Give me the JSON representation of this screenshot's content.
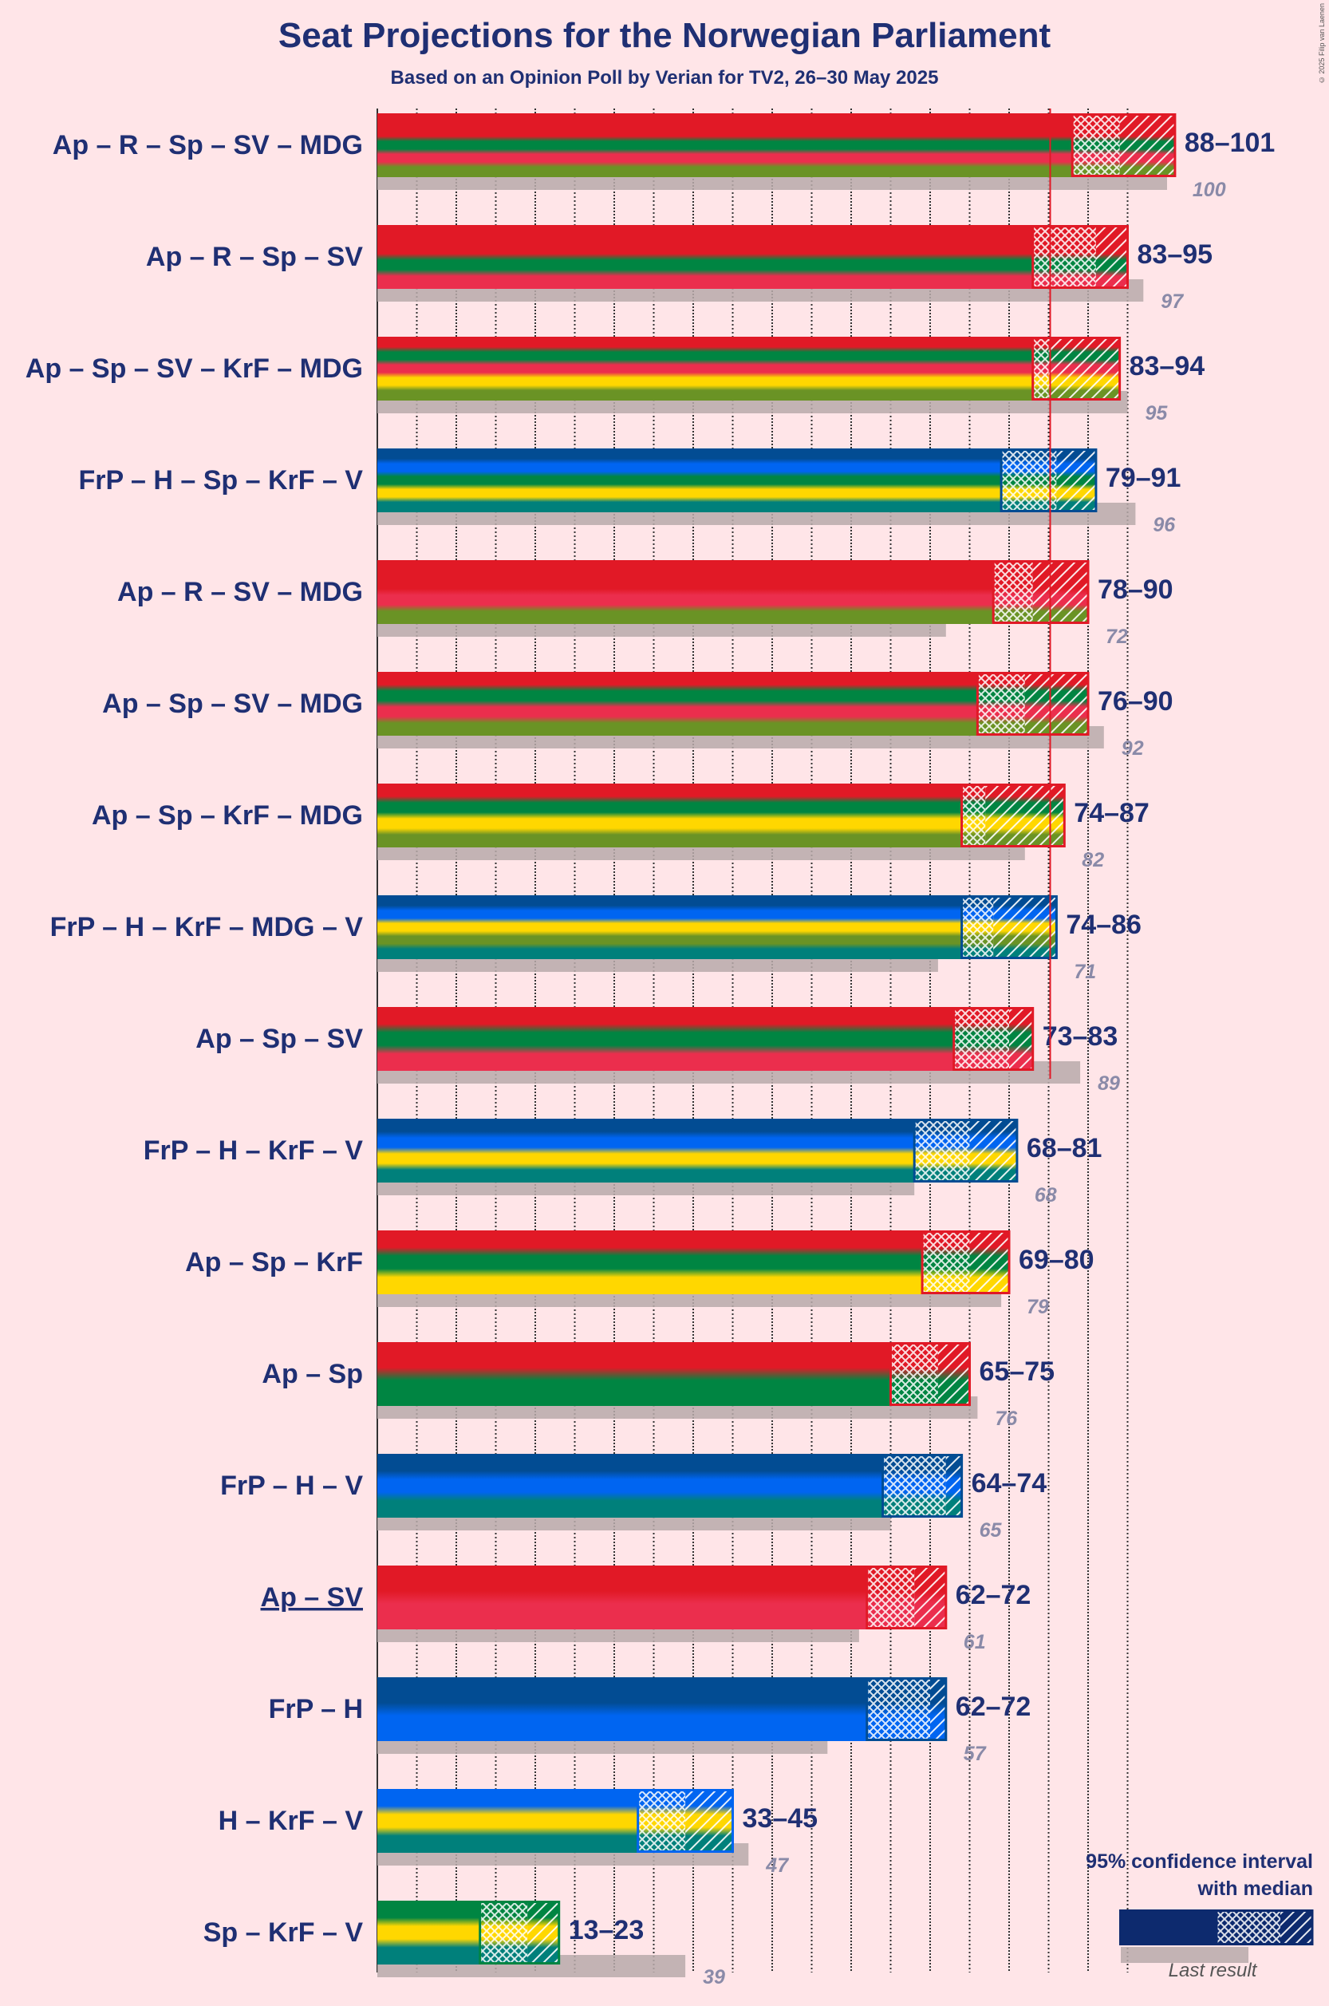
{
  "title": "Seat Projections for the Norwegian Parliament",
  "subtitle": "Based on an Opinion Poll by Verian for TV2, 26–30 May 2025",
  "copyright": "© 2025 Filip van Laenen",
  "legend": {
    "title_line1": "95% confidence interval",
    "title_line2": "with median",
    "last_result": "Last result"
  },
  "colors": {
    "Ap": "#E11926",
    "R": "#E11926",
    "Sp": "#008542",
    "SV": "#EB2E4D",
    "MDG": "#6A9325",
    "KrF": "#FFD700",
    "FrP": "#024C93",
    "H": "#0065F1",
    "V": "#00807B",
    "background": "#FFE5E8",
    "text": "#1F2F73",
    "last": "#B8AAAA",
    "majority_line": "#E11926"
  },
  "chart_data": {
    "type": "bar",
    "title": "Seat Projections for the Norwegian Parliament",
    "subtitle": "Based on an Opinion Poll by Verian for TV2, 26–30 May 2025",
    "xlim": [
      0,
      101
    ],
    "majority": 85,
    "grid": "dotted every 5 seats",
    "legend_position": "bottom-right",
    "coalitions": [
      {
        "name": "Ap – R – Sp – SV – MDG",
        "parties": [
          "Ap",
          "R",
          "Sp",
          "SV",
          "MDG"
        ],
        "low": 88,
        "median": 94,
        "high": 101,
        "range_label": "88–101",
        "last_result": 100
      },
      {
        "name": "Ap – R – Sp – SV",
        "parties": [
          "Ap",
          "R",
          "Sp",
          "SV"
        ],
        "low": 83,
        "median": 91,
        "high": 95,
        "range_label": "83–95",
        "last_result": 97
      },
      {
        "name": "Ap – Sp – SV – KrF – MDG",
        "parties": [
          "Ap",
          "Sp",
          "SV",
          "KrF",
          "MDG"
        ],
        "low": 83,
        "median": 85,
        "high": 94,
        "range_label": "83–94",
        "last_result": 95
      },
      {
        "name": "FrP – H – Sp – KrF – V",
        "parties": [
          "FrP",
          "H",
          "Sp",
          "KrF",
          "V"
        ],
        "low": 79,
        "median": 86,
        "high": 91,
        "range_label": "79–91",
        "last_result": 96
      },
      {
        "name": "Ap – R – SV – MDG",
        "parties": [
          "Ap",
          "R",
          "SV",
          "MDG"
        ],
        "low": 78,
        "median": 83,
        "high": 90,
        "range_label": "78–90",
        "last_result": 72
      },
      {
        "name": "Ap – Sp – SV – MDG",
        "parties": [
          "Ap",
          "Sp",
          "SV",
          "MDG"
        ],
        "low": 76,
        "median": 82,
        "high": 90,
        "range_label": "76–90",
        "last_result": 92
      },
      {
        "name": "Ap – Sp – KrF – MDG",
        "parties": [
          "Ap",
          "Sp",
          "KrF",
          "MDG"
        ],
        "low": 74,
        "median": 77,
        "high": 87,
        "range_label": "74–87",
        "last_result": 82
      },
      {
        "name": "FrP – H – KrF – MDG – V",
        "parties": [
          "FrP",
          "H",
          "KrF",
          "MDG",
          "V"
        ],
        "low": 74,
        "median": 78,
        "high": 86,
        "range_label": "74–86",
        "last_result": 71
      },
      {
        "name": "Ap – Sp – SV",
        "parties": [
          "Ap",
          "Sp",
          "SV"
        ],
        "low": 73,
        "median": 80,
        "high": 83,
        "range_label": "73–83",
        "last_result": 89
      },
      {
        "name": "FrP – H – KrF – V",
        "parties": [
          "FrP",
          "H",
          "KrF",
          "V"
        ],
        "low": 68,
        "median": 75,
        "high": 81,
        "range_label": "68–81",
        "last_result": 68
      },
      {
        "name": "Ap – Sp – KrF",
        "parties": [
          "Ap",
          "Sp",
          "KrF"
        ],
        "low": 69,
        "median": 75,
        "high": 80,
        "range_label": "69–80",
        "last_result": 79
      },
      {
        "name": "Ap – Sp",
        "parties": [
          "Ap",
          "Sp"
        ],
        "low": 65,
        "median": 71,
        "high": 75,
        "range_label": "65–75",
        "last_result": 76
      },
      {
        "name": "FrP – H – V",
        "parties": [
          "FrP",
          "H",
          "V"
        ],
        "low": 64,
        "median": 72,
        "high": 74,
        "range_label": "64–74",
        "last_result": 65
      },
      {
        "name": "Ap – SV",
        "parties": [
          "Ap",
          "SV"
        ],
        "low": 62,
        "median": 68,
        "high": 72,
        "range_label": "62–72",
        "last_result": 61,
        "underline": true
      },
      {
        "name": "FrP – H",
        "parties": [
          "FrP",
          "H"
        ],
        "low": 62,
        "median": 70,
        "high": 72,
        "range_label": "62–72",
        "last_result": 57
      },
      {
        "name": "H – KrF – V",
        "parties": [
          "H",
          "KrF",
          "V"
        ],
        "low": 33,
        "median": 39,
        "high": 45,
        "range_label": "33–45",
        "last_result": 47
      },
      {
        "name": "Sp – KrF – V",
        "parties": [
          "Sp",
          "KrF",
          "V"
        ],
        "low": 13,
        "median": 19,
        "high": 23,
        "range_label": "13–23",
        "last_result": 39
      }
    ]
  }
}
